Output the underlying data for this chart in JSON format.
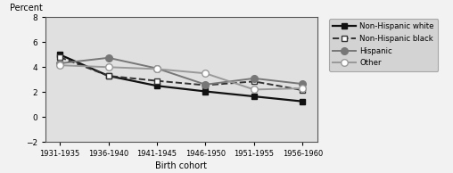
{
  "x_labels": [
    "1931-1935",
    "1936-1940",
    "1941-1945",
    "1946-1950",
    "1951-1955",
    "1956-1960"
  ],
  "x_values": [
    0,
    1,
    2,
    3,
    4,
    5
  ],
  "series_order": [
    "Non-Hispanic white",
    "Non-Hispanic black",
    "Hispanic",
    "Other"
  ],
  "series": {
    "Non-Hispanic white": {
      "values": [
        5.0,
        3.3,
        2.5,
        2.05,
        1.65,
        1.25
      ],
      "color": "#111111",
      "linestyle": "-",
      "marker": "s",
      "markerfacecolor": "#111111",
      "linewidth": 1.6,
      "markersize": 4.5
    },
    "Non-Hispanic black": {
      "values": [
        4.8,
        3.3,
        2.9,
        2.55,
        2.85,
        2.15
      ],
      "color": "#333333",
      "linestyle": "--",
      "marker": "s",
      "markerfacecolor": "white",
      "linewidth": 1.4,
      "markersize": 4.5
    },
    "Hispanic": {
      "values": [
        4.3,
        4.75,
        3.9,
        2.6,
        3.1,
        2.65
      ],
      "color": "#777777",
      "linestyle": "-",
      "marker": "o",
      "markerfacecolor": "#777777",
      "linewidth": 1.4,
      "markersize": 5.5
    },
    "Other": {
      "values": [
        4.15,
        4.0,
        3.85,
        3.5,
        2.2,
        2.3
      ],
      "color": "#999999",
      "linestyle": "-",
      "marker": "o",
      "markerfacecolor": "white",
      "linewidth": 1.4,
      "markersize": 5.5
    }
  },
  "ylim": [
    -2,
    8
  ],
  "yticks": [
    -2,
    0,
    2,
    4,
    6,
    8
  ],
  "ylabel": "Percent",
  "xlabel": "Birth cohort",
  "plot_bg_color": "#e0e0e0",
  "fig_bg_color": "#f2f2f2",
  "legend_bg": "#cccccc",
  "legend_edge": "#999999"
}
